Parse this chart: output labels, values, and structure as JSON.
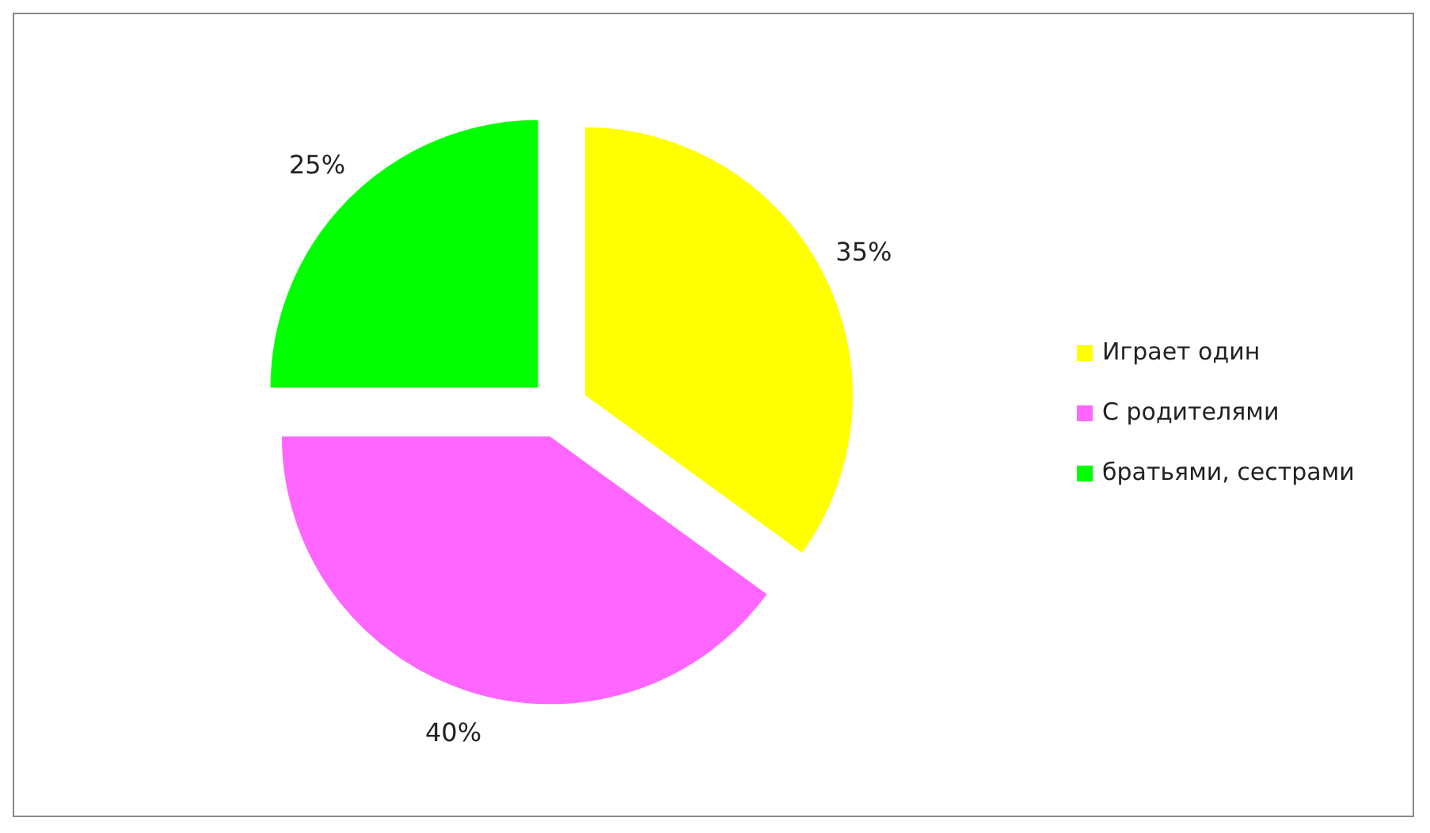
{
  "chart_data": {
    "type": "pie",
    "categories": [
      "Играет один",
      "С родителями",
      "братьями, сестрами"
    ],
    "values": [
      35,
      40,
      25
    ],
    "colors": [
      "#ffff00",
      "#ff66ff",
      "#00ff00"
    ],
    "value_labels": [
      "35%",
      "40%",
      "25%"
    ],
    "legend": "right"
  }
}
